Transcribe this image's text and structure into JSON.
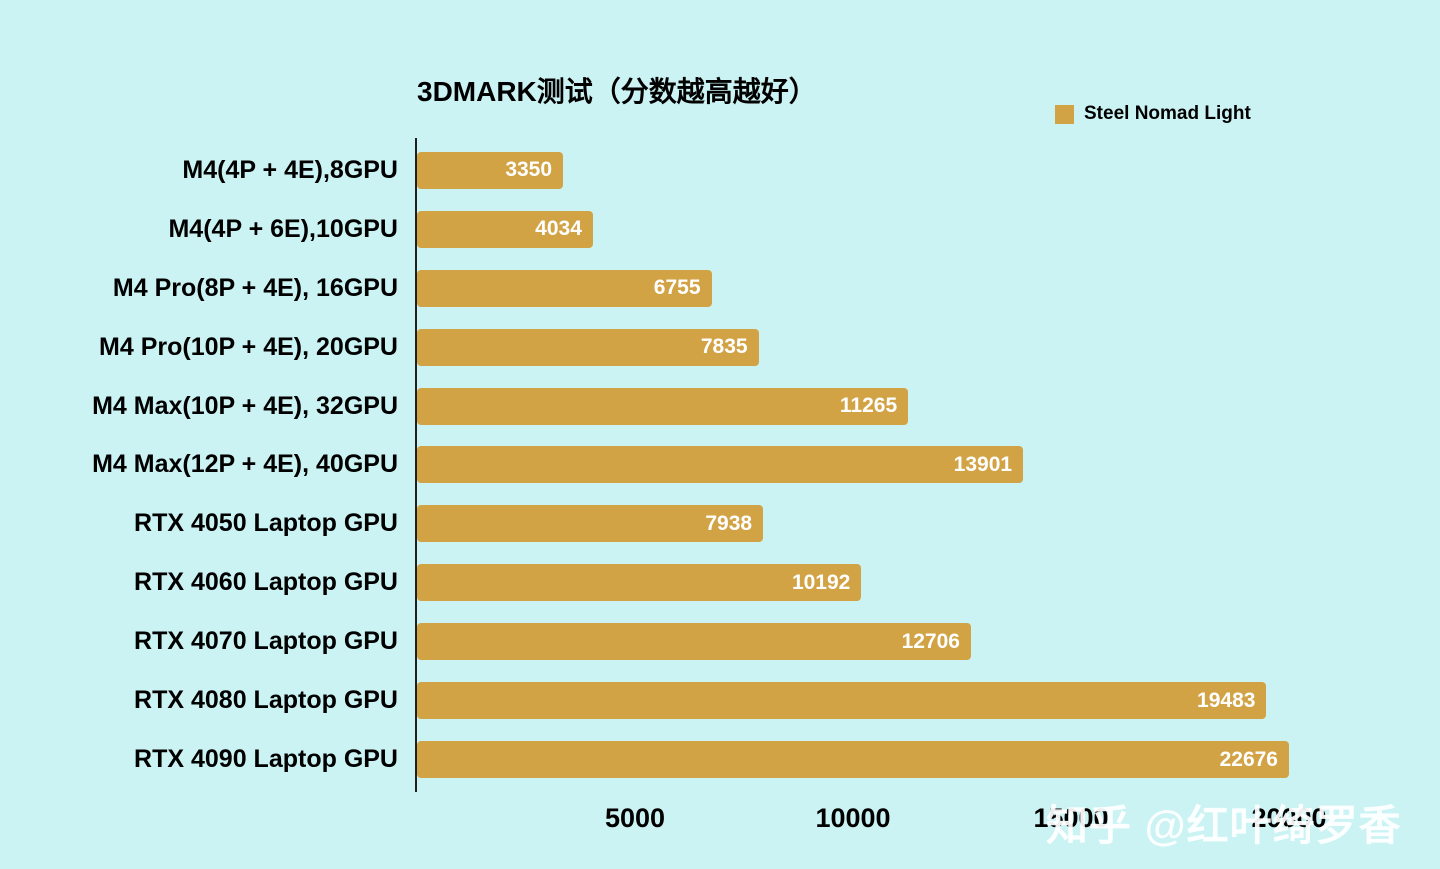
{
  "watermark": "知乎 @红叶绮罗香",
  "colors": {
    "background": "#cbf3f4",
    "bar": "#d2a345",
    "axis": "#1f1f1f",
    "text": "#000000",
    "value_label": "#ffffff"
  },
  "legend": {
    "label": "Steel Nomad Light"
  },
  "chart_data": {
    "type": "bar",
    "orientation": "horizontal",
    "title": "3DMARK测试（分数越高越好）",
    "series_name": "Steel Nomad Light",
    "categories": [
      "M4(4P + 4E),8GPU",
      "M4(4P + 6E),10GPU",
      "M4 Pro(8P + 4E), 16GPU",
      "M4 Pro(10P + 4E), 20GPU",
      "M4 Max(10P + 4E), 32GPU",
      "M4 Max(12P + 4E), 40GPU",
      "RTX 4050 Laptop GPU",
      "RTX 4060 Laptop GPU",
      "RTX 4070 Laptop GPU",
      "RTX 4080 Laptop GPU",
      "RTX 4090 Laptop GPU"
    ],
    "values": [
      3350,
      4034,
      6755,
      7835,
      11265,
      13901,
      7938,
      10192,
      12706,
      19483,
      22676
    ],
    "xlim": [
      0,
      20000
    ],
    "xticks": [
      5000,
      10000,
      15000,
      20000
    ],
    "bars_clipped_at_xmax": true,
    "legend_position": "top-right",
    "grid": false
  }
}
